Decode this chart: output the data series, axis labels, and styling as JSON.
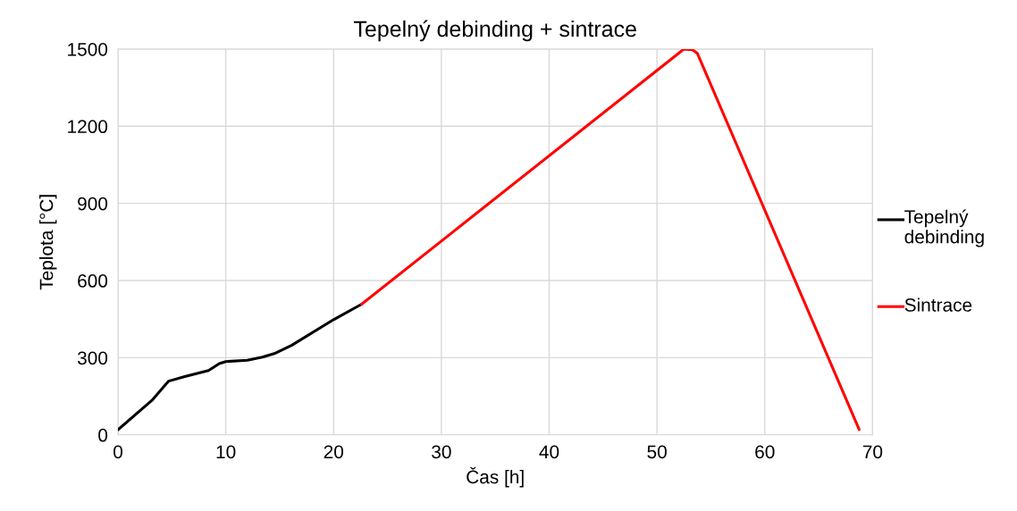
{
  "chart_data": {
    "type": "line",
    "title": "Tepelný debinding + sintrace",
    "xlabel": "Čas [h]",
    "ylabel": "Teplota [°C]",
    "series": [
      {
        "name": "Tepelný debinding",
        "color": "#000000",
        "x": [
          0,
          3.15,
          4.7,
          6.2,
          8.4,
          9.4,
          10.0,
          12.0,
          13.4,
          14.5,
          16.1,
          20.0,
          22.6
        ],
        "values": [
          20,
          134,
          209,
          227,
          250,
          277,
          285,
          290,
          302,
          316,
          348,
          448,
          508
        ]
      },
      {
        "name": "Sintrace",
        "color": "#ff0000",
        "x": [
          22.6,
          52.5,
          53.3,
          53.75,
          68.75
        ],
        "values": [
          508,
          1500,
          1497,
          1483,
          21
        ]
      }
    ],
    "xlim": [
      0,
      70
    ],
    "xticks": [
      0,
      10,
      20,
      30,
      40,
      50,
      60,
      70
    ],
    "ylim": [
      0,
      1500
    ],
    "yticks": [
      0,
      300,
      600,
      900,
      1200,
      1500
    ],
    "grid": true,
    "legend": "right",
    "marker": "none",
    "line_style": "solid"
  }
}
